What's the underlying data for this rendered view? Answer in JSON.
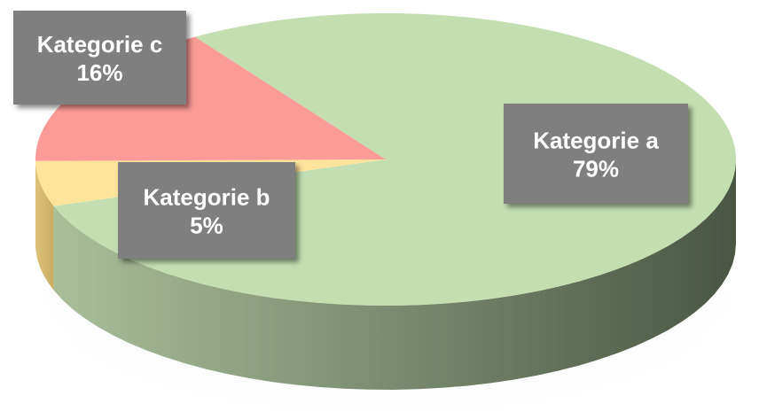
{
  "chart_data": {
    "type": "pie3d",
    "categories": [
      "Kategorie a",
      "Kategorie b",
      "Kategorie c"
    ],
    "values": [
      79,
      5,
      16
    ],
    "value_labels": [
      "79%",
      "5%",
      "16%"
    ],
    "colors": [
      "#c3dfb2",
      "#fde49c",
      "#fb9b98"
    ],
    "side_colors": [
      [
        "#a9bf9a",
        "#4a5643"
      ],
      [
        "#dcc27a",
        "#c9ad60"
      ],
      [
        "#d88080",
        "#c06a6a"
      ]
    ]
  }
}
